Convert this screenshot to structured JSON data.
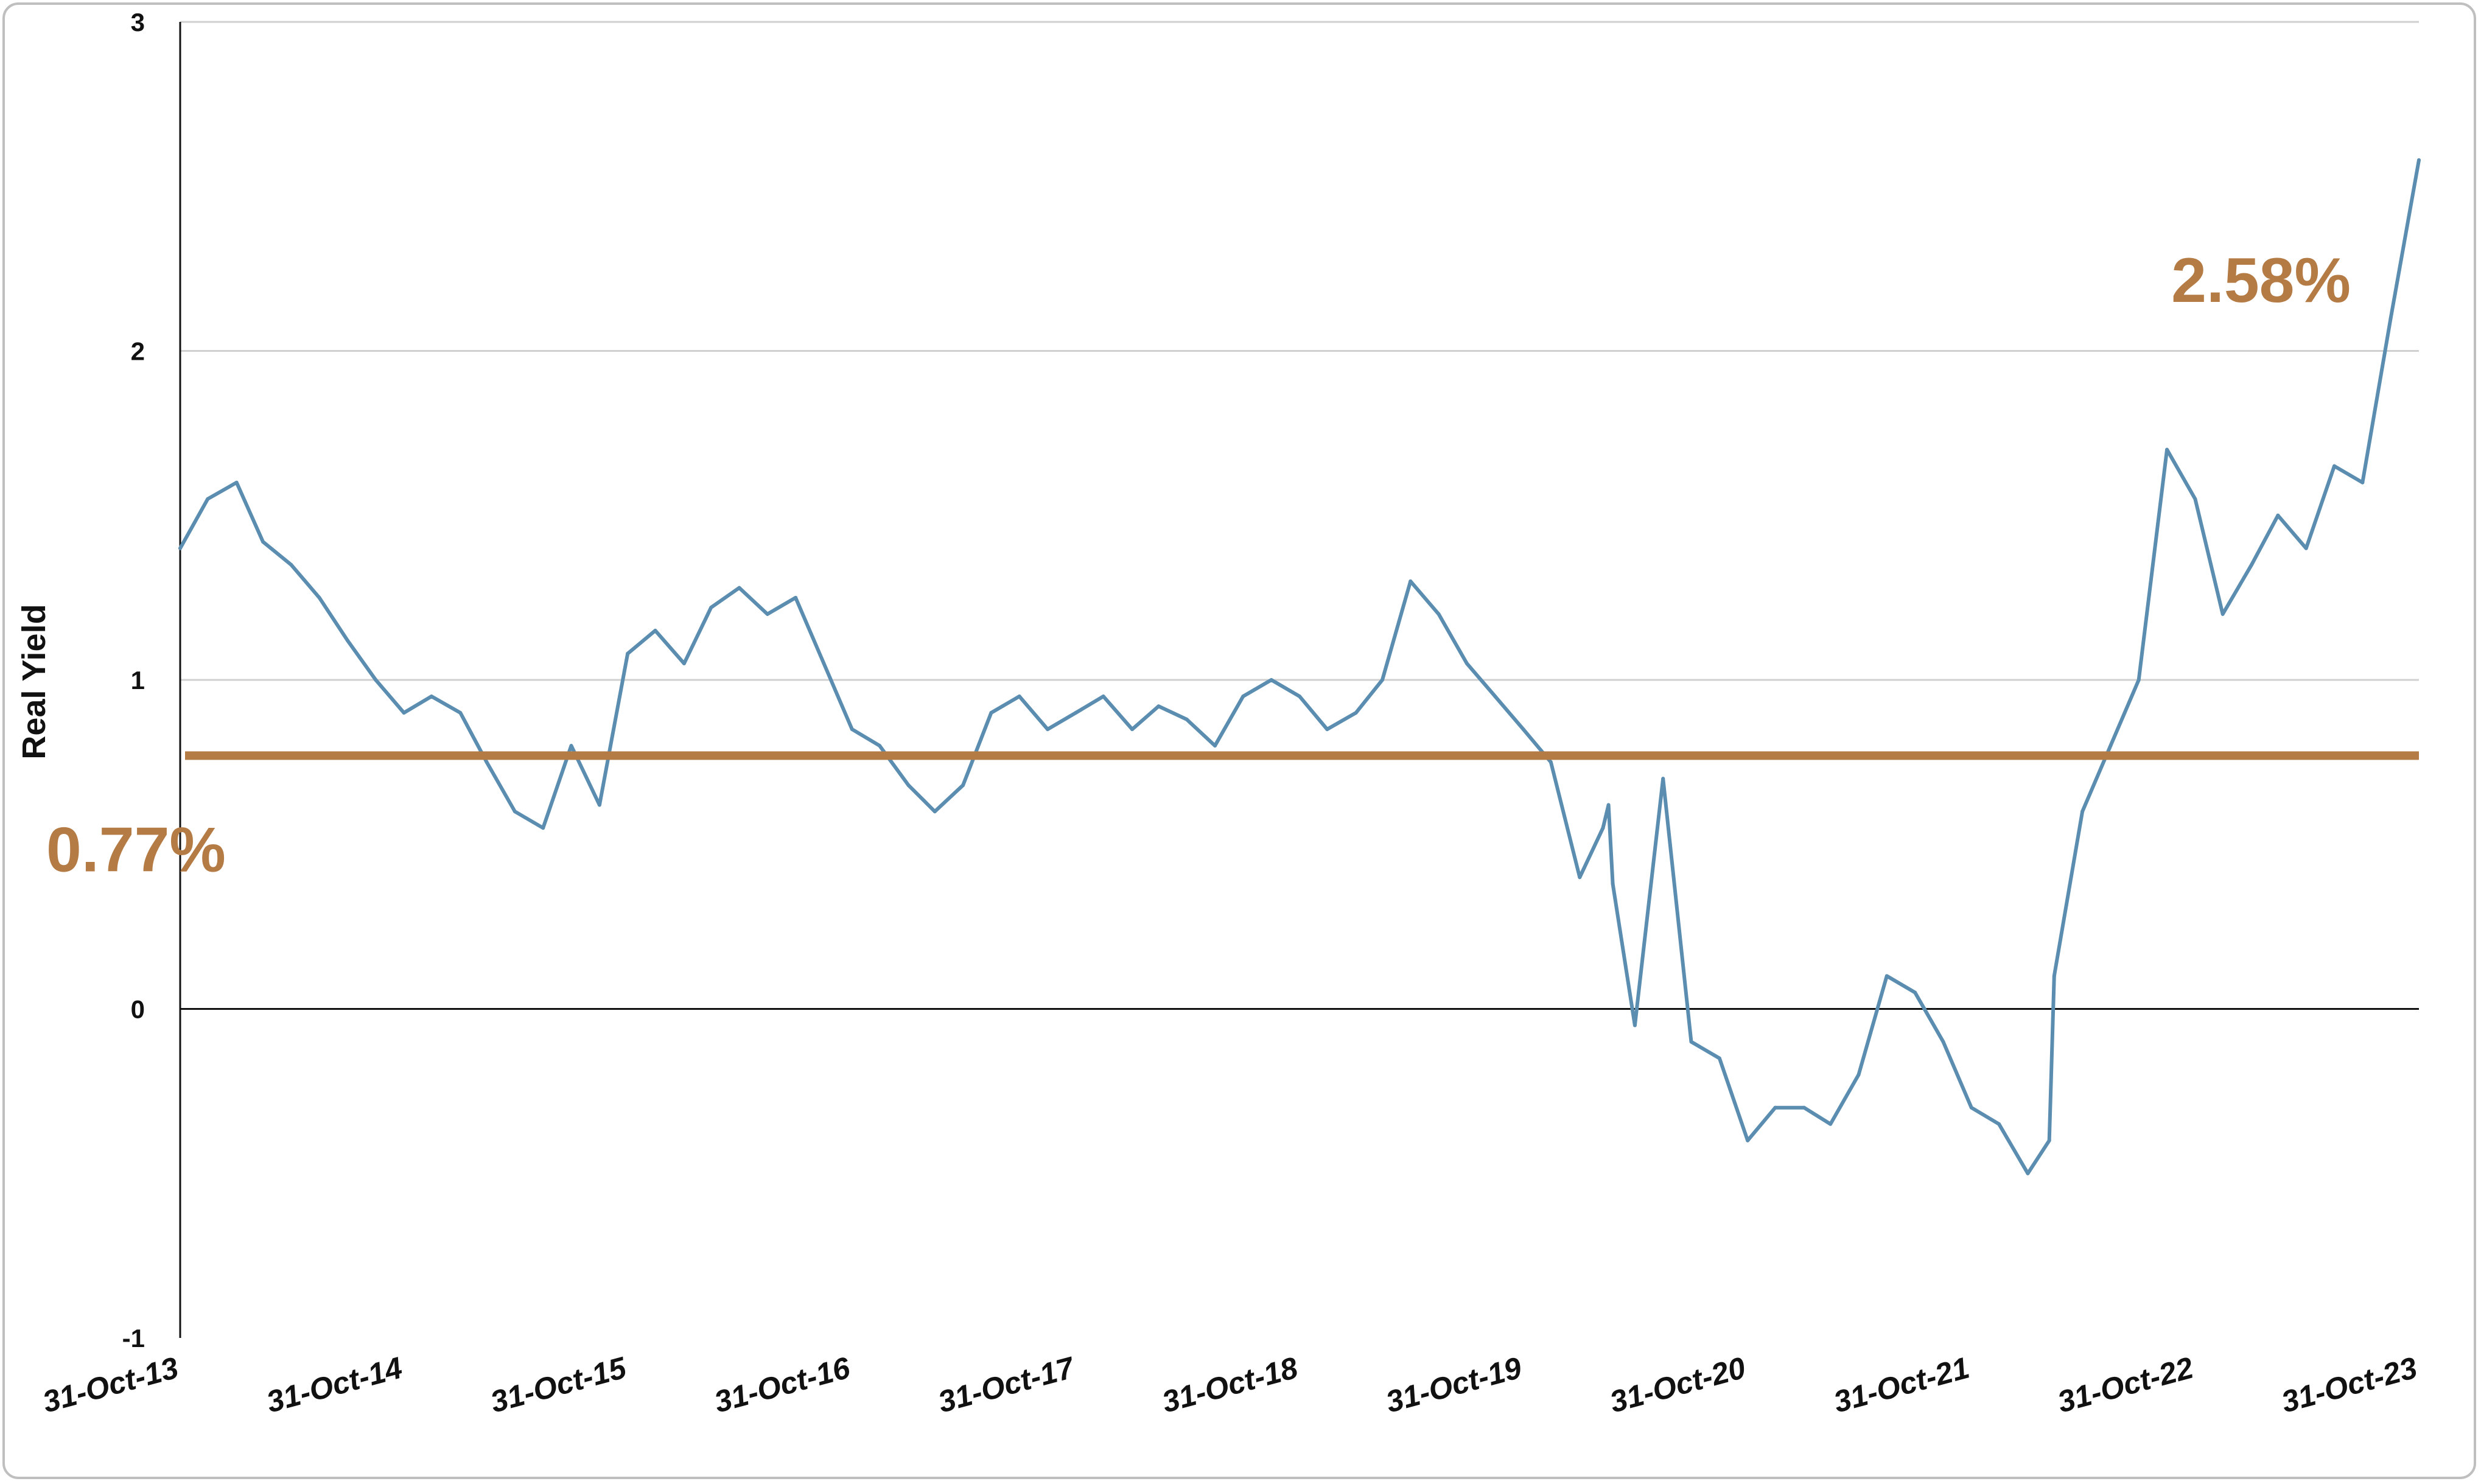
{
  "chart_data": {
    "type": "line",
    "title": "",
    "xlabel": "",
    "ylabel": "Real Yield",
    "ylim": [
      -1,
      3
    ],
    "yticks": [
      "-1",
      "0",
      "1",
      "2",
      "3"
    ],
    "grid": "horizontal",
    "xticks": [
      "31-Oct-13",
      "31-Oct-14",
      "31-Oct-15",
      "31-Oct-16",
      "31-Oct-17",
      "31-Oct-18",
      "31-Oct-19",
      "31-Oct-20",
      "31-Oct-21",
      "31-Oct-22",
      "31-Oct-23"
    ],
    "x": [
      "2013-10-31",
      "2013-12-15",
      "2014-01-31",
      "2014-03-15",
      "2014-04-30",
      "2014-06-15",
      "2014-07-31",
      "2014-09-15",
      "2014-10-31",
      "2014-12-15",
      "2015-01-31",
      "2015-03-15",
      "2015-04-30",
      "2015-06-15",
      "2015-07-31",
      "2015-09-15",
      "2015-10-31",
      "2015-12-15",
      "2016-01-31",
      "2016-03-15",
      "2016-04-30",
      "2016-06-15",
      "2016-07-31",
      "2016-09-15",
      "2016-10-31",
      "2016-12-15",
      "2017-01-31",
      "2017-03-15",
      "2017-04-30",
      "2017-06-15",
      "2017-07-31",
      "2017-09-15",
      "2017-10-31",
      "2017-12-15",
      "2018-01-31",
      "2018-03-15",
      "2018-04-30",
      "2018-06-15",
      "2018-07-31",
      "2018-09-15",
      "2018-10-31",
      "2018-12-15",
      "2019-01-31",
      "2019-03-15",
      "2019-04-30",
      "2019-06-15",
      "2019-07-31",
      "2019-09-15",
      "2019-10-31",
      "2019-12-15",
      "2020-01-31",
      "2020-03-09",
      "2020-03-18",
      "2020-03-25",
      "2020-04-30",
      "2020-06-15",
      "2020-07-31",
      "2020-09-15",
      "2020-10-31",
      "2020-12-15",
      "2021-01-31",
      "2021-03-15",
      "2021-04-30",
      "2021-06-15",
      "2021-07-31",
      "2021-09-15",
      "2021-10-31",
      "2021-12-15",
      "2022-01-31",
      "2022-03-07",
      "2022-03-15",
      "2022-04-30",
      "2022-06-15",
      "2022-07-31",
      "2022-09-15",
      "2022-10-31",
      "2022-12-15",
      "2023-01-31",
      "2023-03-15",
      "2023-04-30",
      "2023-06-15",
      "2023-07-31",
      "2023-09-15",
      "2023-10-31"
    ],
    "series": [
      {
        "values": [
          1.4,
          1.55,
          1.6,
          1.42,
          1.35,
          1.25,
          1.12,
          1.0,
          0.9,
          0.95,
          0.9,
          0.75,
          0.6,
          0.55,
          0.8,
          0.62,
          1.08,
          1.15,
          1.05,
          1.22,
          1.28,
          1.2,
          1.25,
          1.05,
          0.85,
          0.8,
          0.68,
          0.6,
          0.68,
          0.9,
          0.95,
          0.85,
          0.9,
          0.95,
          0.85,
          0.92,
          0.88,
          0.8,
          0.95,
          1.0,
          0.95,
          0.85,
          0.9,
          1.0,
          1.3,
          1.2,
          1.05,
          0.95,
          0.85,
          0.75,
          0.4,
          0.55,
          0.62,
          0.38,
          -0.05,
          0.7,
          -0.1,
          -0.15,
          -0.4,
          -0.3,
          -0.3,
          -0.35,
          -0.2,
          0.1,
          0.05,
          -0.1,
          -0.3,
          -0.35,
          -0.5,
          -0.4,
          0.1,
          0.6,
          0.8,
          1.0,
          1.7,
          1.55,
          1.2,
          1.35,
          1.5,
          1.4,
          1.65,
          1.6,
          2.1,
          2.58
        ]
      }
    ],
    "reference_line": {
      "value": 0.77,
      "label": "0.77%",
      "color": "#b57b45"
    },
    "end_label": "2.58%",
    "colors": {
      "line": "#5b8db0",
      "reference": "#b57b45",
      "grid": "#d0d0d0",
      "axis": "#111111"
    }
  }
}
